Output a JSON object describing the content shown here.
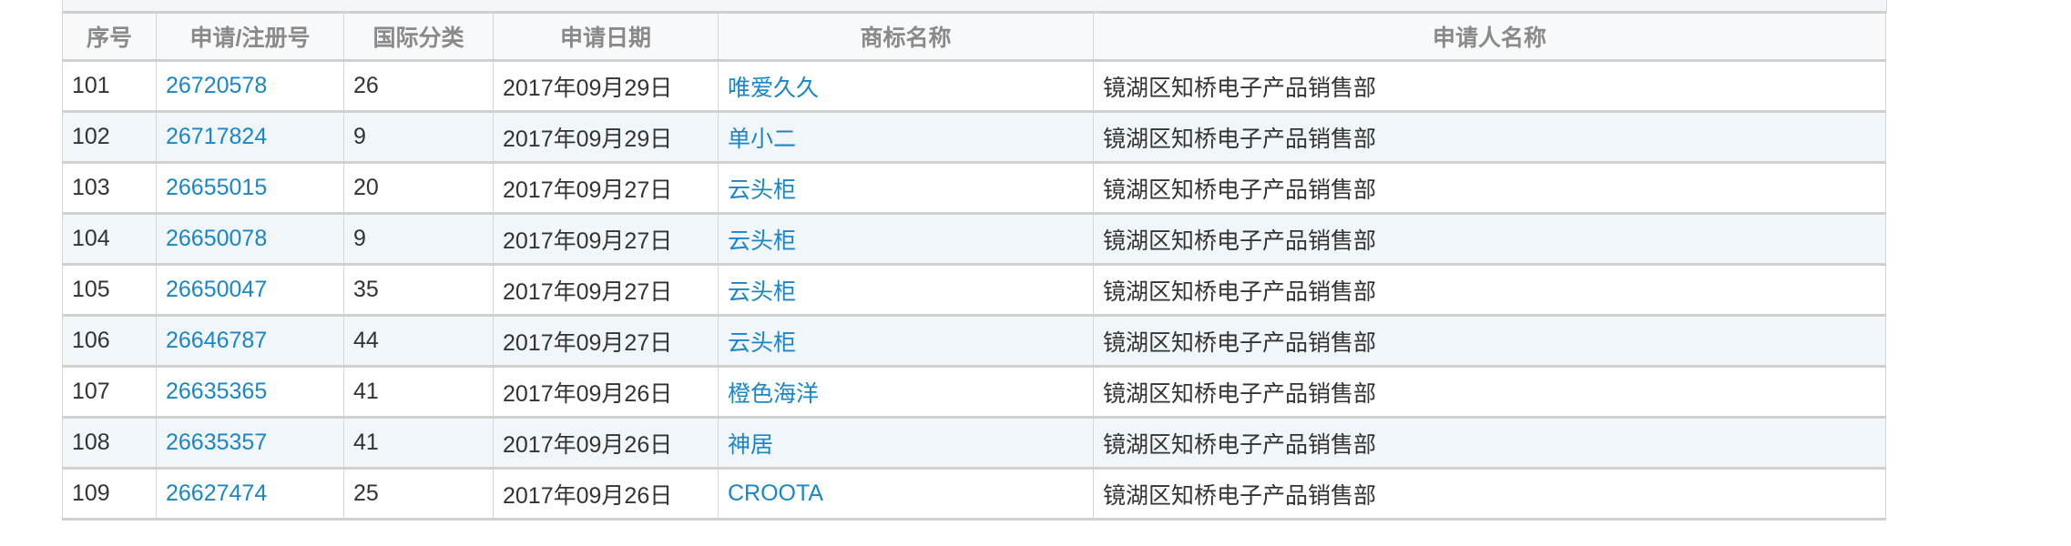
{
  "table": {
    "headers": [
      "序号",
      "申请/注册号",
      "国际分类",
      "申请日期",
      "商标名称",
      "申请人名称"
    ],
    "rows": [
      {
        "no": "101",
        "reg": "26720578",
        "cls": "26",
        "date": "2017年09月29日",
        "name": "唯爱久久",
        "applicant": "镜湖区知桥电子产品销售部"
      },
      {
        "no": "102",
        "reg": "26717824",
        "cls": "9",
        "date": "2017年09月29日",
        "name": "单小二",
        "applicant": "镜湖区知桥电子产品销售部"
      },
      {
        "no": "103",
        "reg": "26655015",
        "cls": "20",
        "date": "2017年09月27日",
        "name": "云头柜",
        "applicant": "镜湖区知桥电子产品销售部"
      },
      {
        "no": "104",
        "reg": "26650078",
        "cls": "9",
        "date": "2017年09月27日",
        "name": "云头柜",
        "applicant": "镜湖区知桥电子产品销售部"
      },
      {
        "no": "105",
        "reg": "26650047",
        "cls": "35",
        "date": "2017年09月27日",
        "name": "云头柜",
        "applicant": "镜湖区知桥电子产品销售部"
      },
      {
        "no": "106",
        "reg": "26646787",
        "cls": "44",
        "date": "2017年09月27日",
        "name": "云头柜",
        "applicant": "镜湖区知桥电子产品销售部"
      },
      {
        "no": "107",
        "reg": "26635365",
        "cls": "41",
        "date": "2017年09月26日",
        "name": "橙色海洋",
        "applicant": "镜湖区知桥电子产品销售部"
      },
      {
        "no": "108",
        "reg": "26635357",
        "cls": "41",
        "date": "2017年09月26日",
        "name": "神居",
        "applicant": "镜湖区知桥电子产品销售部"
      },
      {
        "no": "109",
        "reg": "26627474",
        "cls": "25",
        "date": "2017年09月26日",
        "name": "CROOTA",
        "applicant": "镜湖区知桥电子产品销售部"
      }
    ]
  },
  "colors": {
    "link": "#1a86c8",
    "header_text": "#8a8a8a",
    "alt_row": "#f0f6fa"
  }
}
